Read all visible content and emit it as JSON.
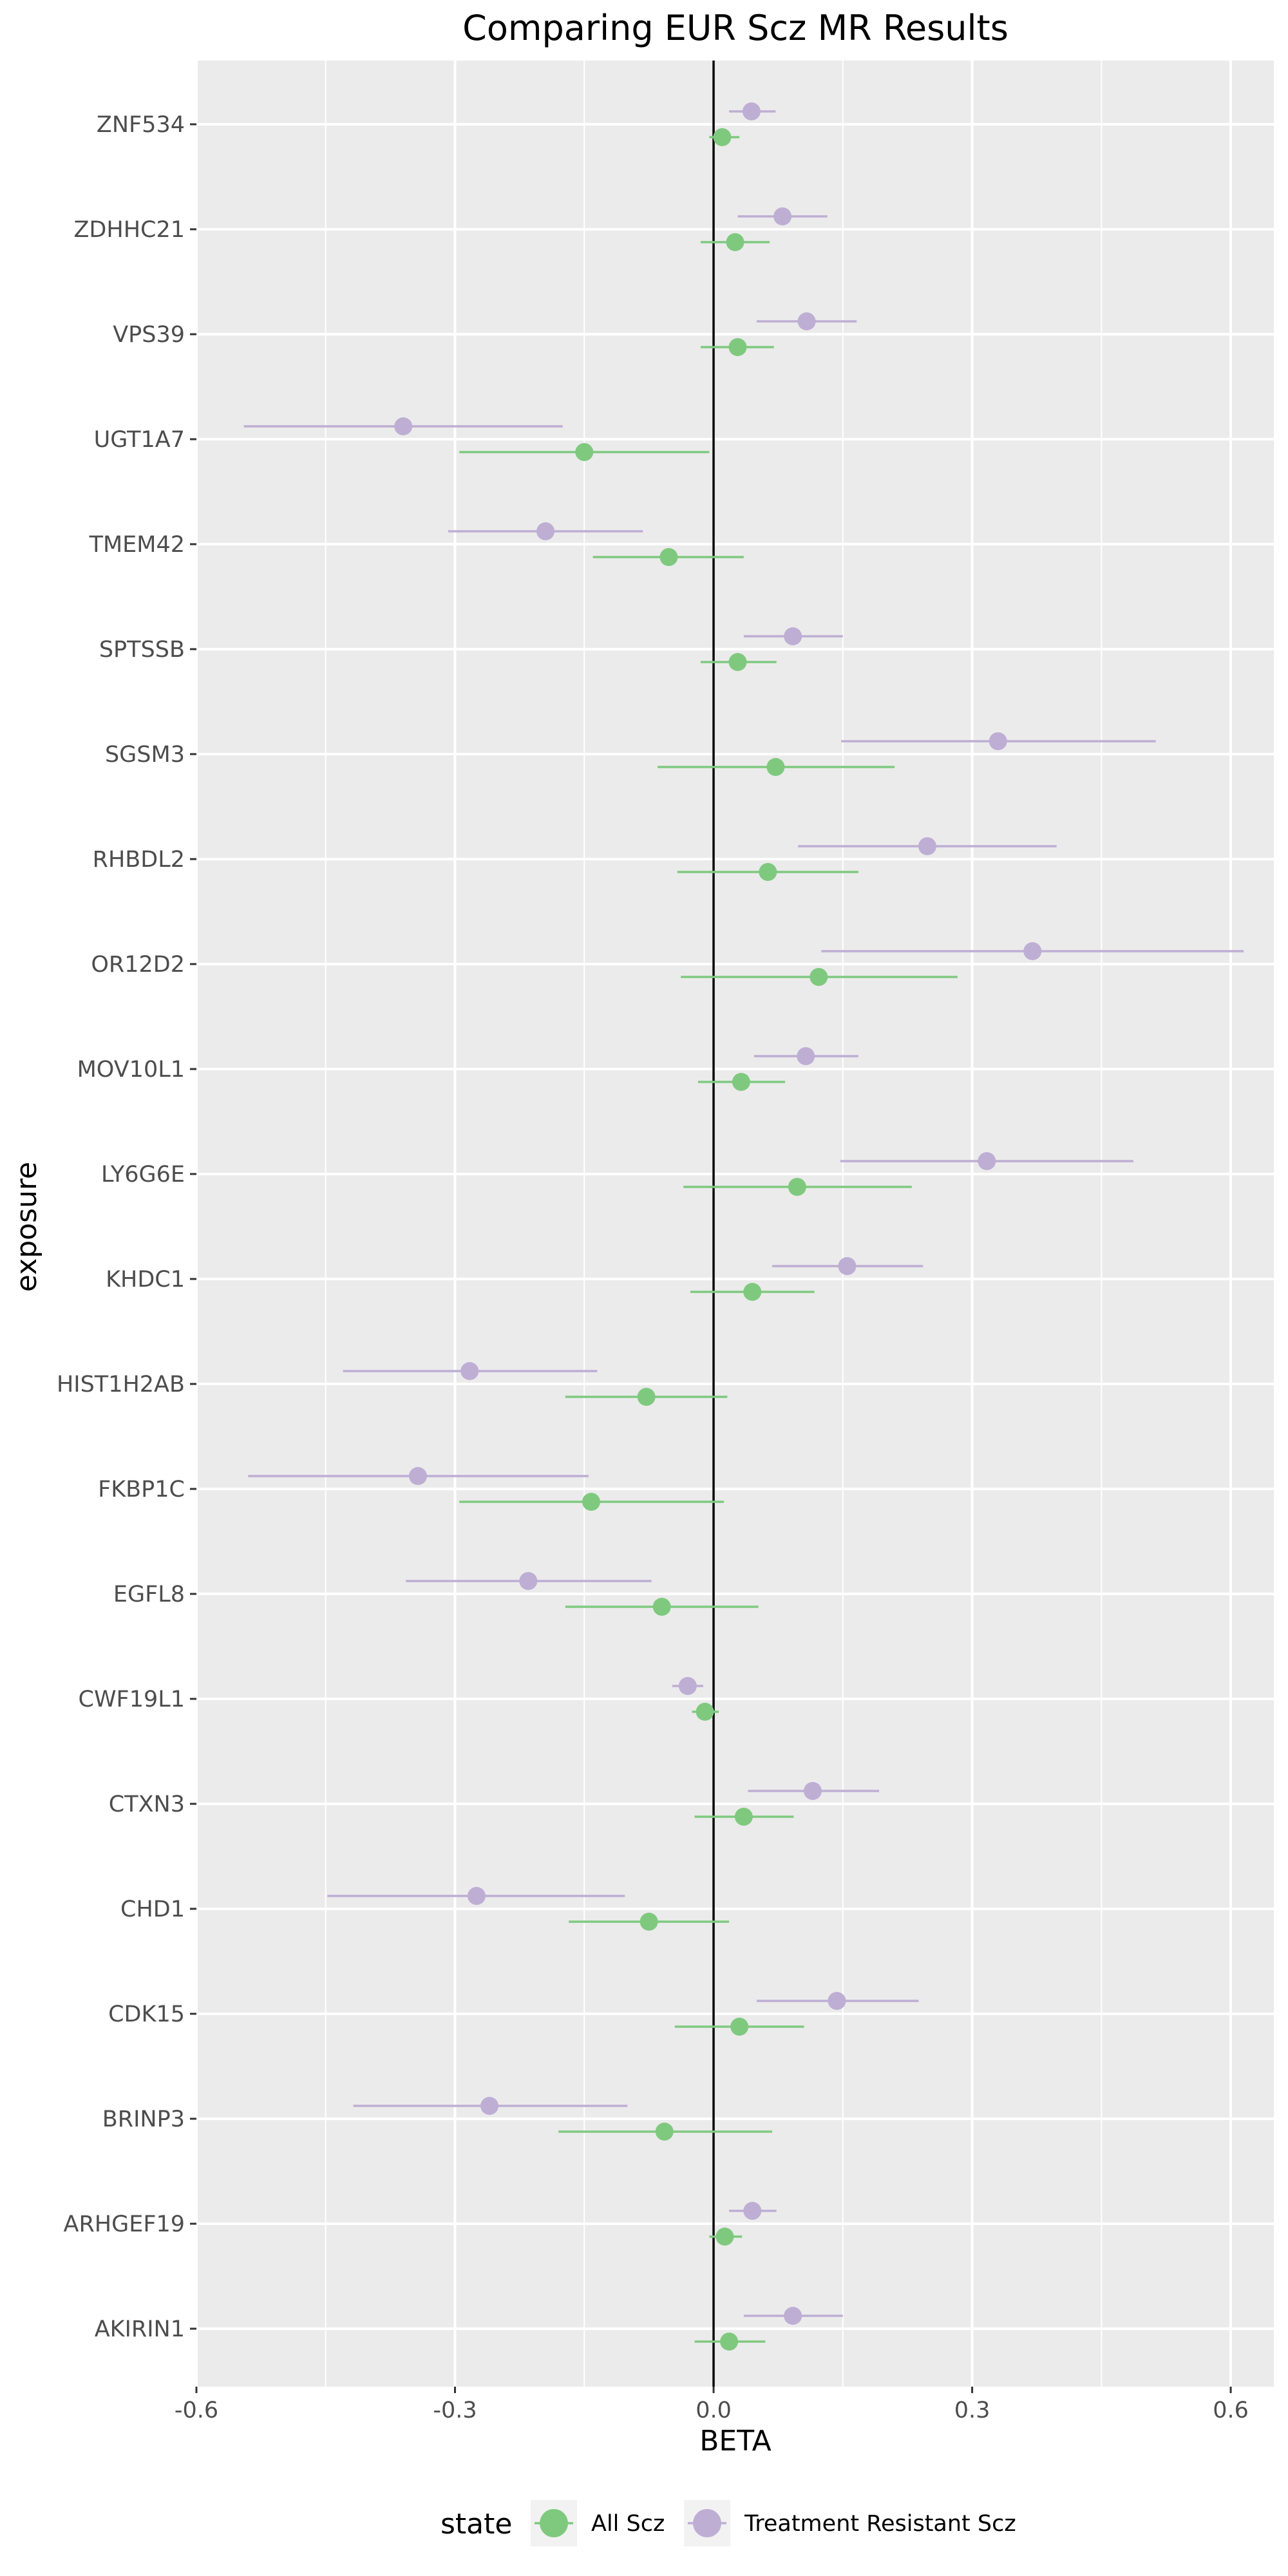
{
  "chart_data": {
    "type": "scatter",
    "title": "Comparing EUR Scz MR Results",
    "xlabel": "BETA",
    "ylabel": "exposure",
    "xlim": [
      -0.6,
      0.65
    ],
    "x_ticks": [
      -0.6,
      -0.3,
      0.0,
      0.3,
      0.6
    ],
    "x_tick_labels": [
      "-0.6",
      "-0.3",
      "0.0",
      "0.3",
      "0.6"
    ],
    "reference_line_x": 0,
    "grid": true,
    "legend_position": "bottom",
    "legend_title": "state",
    "categories": [
      "ZNF534",
      "ZDHHC21",
      "VPS39",
      "UGT1A7",
      "TMEM42",
      "SPTSSB",
      "SGSM3",
      "RHBDL2",
      "OR12D2",
      "MOV10L1",
      "LY6G6E",
      "KHDC1",
      "HIST1H2AB",
      "FKBP1C",
      "EGFL8",
      "CWF19L1",
      "CTXN3",
      "CHD1",
      "CDK15",
      "BRINP3",
      "ARHGEF19",
      "AKIRIN1"
    ],
    "series": [
      {
        "name": "All Scz",
        "color": "#7fc97f",
        "points": [
          {
            "beta": 0.01,
            "lo": -0.005,
            "hi": 0.03
          },
          {
            "beta": 0.025,
            "lo": -0.015,
            "hi": 0.065
          },
          {
            "beta": 0.028,
            "lo": -0.015,
            "hi": 0.07
          },
          {
            "beta": -0.15,
            "lo": -0.295,
            "hi": -0.005
          },
          {
            "beta": -0.052,
            "lo": -0.14,
            "hi": 0.035
          },
          {
            "beta": 0.028,
            "lo": -0.015,
            "hi": 0.073
          },
          {
            "beta": 0.072,
            "lo": -0.065,
            "hi": 0.21
          },
          {
            "beta": 0.063,
            "lo": -0.042,
            "hi": 0.168
          },
          {
            "beta": 0.122,
            "lo": -0.038,
            "hi": 0.283
          },
          {
            "beta": 0.032,
            "lo": -0.018,
            "hi": 0.083
          },
          {
            "beta": 0.097,
            "lo": -0.035,
            "hi": 0.23
          },
          {
            "beta": 0.045,
            "lo": -0.027,
            "hi": 0.117
          },
          {
            "beta": -0.078,
            "lo": -0.172,
            "hi": 0.016
          },
          {
            "beta": -0.142,
            "lo": -0.295,
            "hi": 0.012
          },
          {
            "beta": -0.06,
            "lo": -0.172,
            "hi": 0.052
          },
          {
            "beta": -0.01,
            "lo": -0.025,
            "hi": 0.006
          },
          {
            "beta": 0.035,
            "lo": -0.022,
            "hi": 0.093
          },
          {
            "beta": -0.075,
            "lo": -0.168,
            "hi": 0.018
          },
          {
            "beta": 0.03,
            "lo": -0.045,
            "hi": 0.105
          },
          {
            "beta": -0.057,
            "lo": -0.18,
            "hi": 0.068
          },
          {
            "beta": 0.013,
            "lo": -0.005,
            "hi": 0.033
          },
          {
            "beta": 0.018,
            "lo": -0.022,
            "hi": 0.06
          }
        ]
      },
      {
        "name": "Treatment Resistant Scz",
        "color": "#beaed4",
        "points": [
          {
            "beta": 0.044,
            "lo": 0.018,
            "hi": 0.072
          },
          {
            "beta": 0.08,
            "lo": 0.028,
            "hi": 0.132
          },
          {
            "beta": 0.108,
            "lo": 0.05,
            "hi": 0.166
          },
          {
            "beta": -0.36,
            "lo": -0.545,
            "hi": -0.175
          },
          {
            "beta": -0.195,
            "lo": -0.308,
            "hi": -0.082
          },
          {
            "beta": 0.092,
            "lo": 0.035,
            "hi": 0.15
          },
          {
            "beta": 0.33,
            "lo": 0.148,
            "hi": 0.513
          },
          {
            "beta": 0.248,
            "lo": 0.098,
            "hi": 0.398
          },
          {
            "beta": 0.37,
            "lo": 0.125,
            "hi": 0.615
          },
          {
            "beta": 0.107,
            "lo": 0.047,
            "hi": 0.168
          },
          {
            "beta": 0.317,
            "lo": 0.147,
            "hi": 0.487
          },
          {
            "beta": 0.155,
            "lo": 0.068,
            "hi": 0.243
          },
          {
            "beta": -0.283,
            "lo": -0.43,
            "hi": -0.135
          },
          {
            "beta": -0.343,
            "lo": -0.54,
            "hi": -0.145
          },
          {
            "beta": -0.215,
            "lo": -0.357,
            "hi": -0.072
          },
          {
            "beta": -0.03,
            "lo": -0.048,
            "hi": -0.012
          },
          {
            "beta": 0.115,
            "lo": 0.04,
            "hi": 0.192
          },
          {
            "beta": -0.275,
            "lo": -0.448,
            "hi": -0.103
          },
          {
            "beta": 0.143,
            "lo": 0.05,
            "hi": 0.238
          },
          {
            "beta": -0.26,
            "lo": -0.418,
            "hi": -0.1
          },
          {
            "beta": 0.045,
            "lo": 0.018,
            "hi": 0.073
          },
          {
            "beta": 0.092,
            "lo": 0.035,
            "hi": 0.15
          }
        ]
      }
    ]
  }
}
